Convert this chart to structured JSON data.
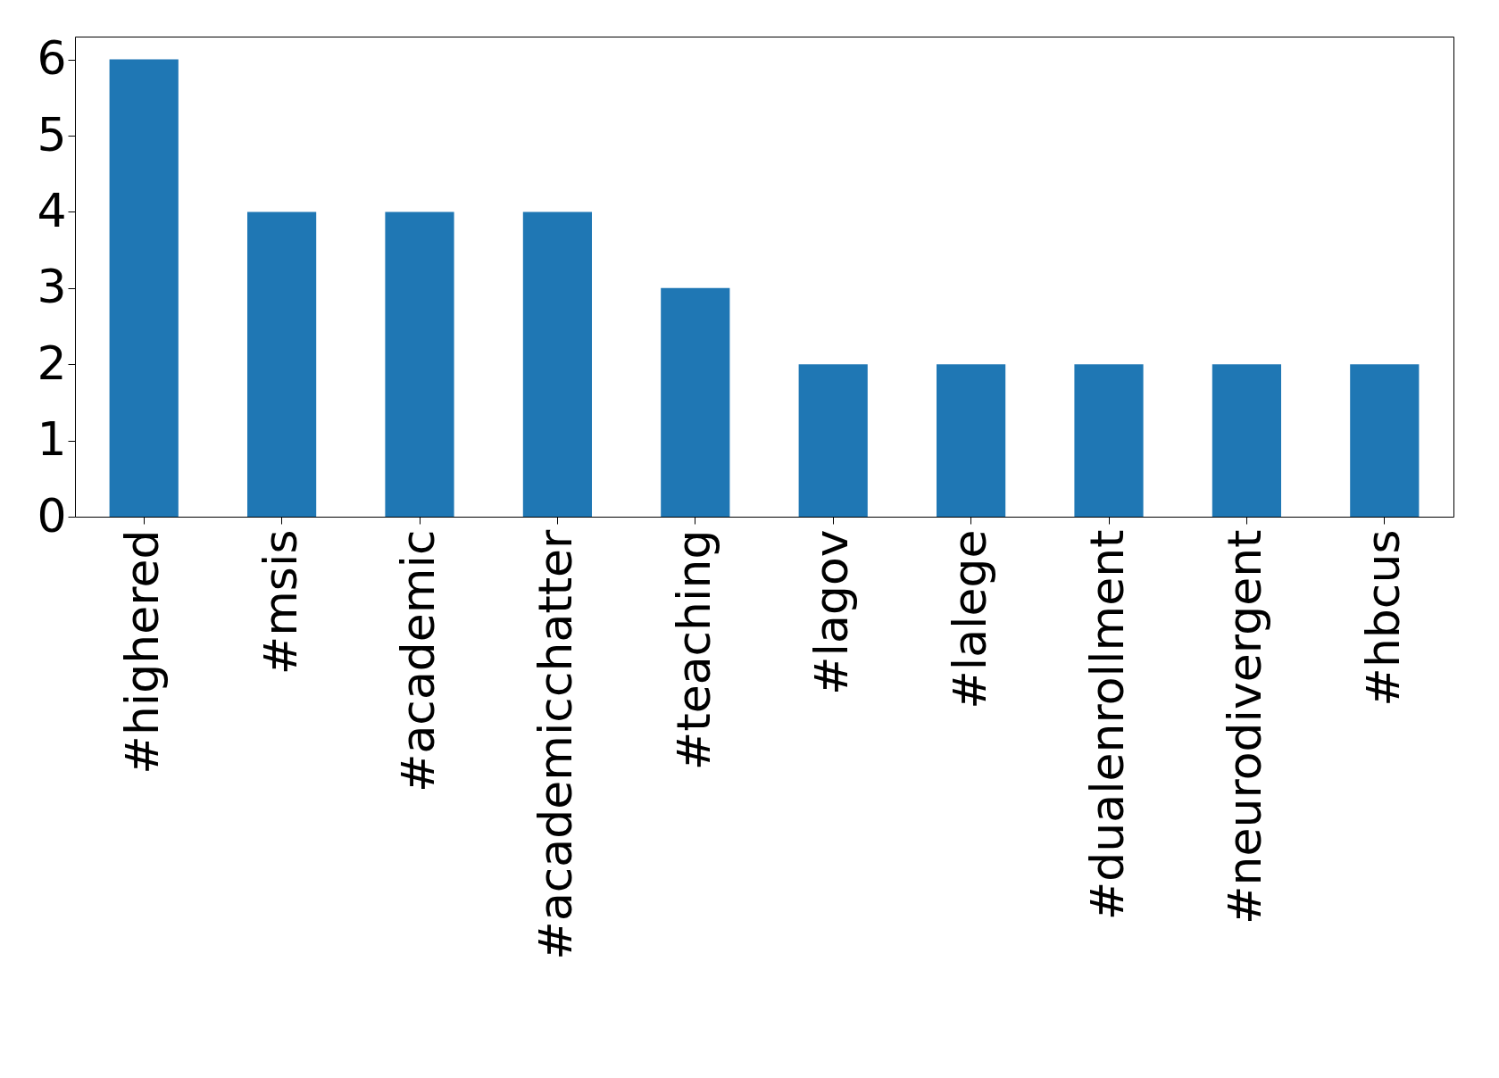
{
  "chart_data": {
    "type": "bar",
    "categories": [
      "#highered",
      "#msis",
      "#academic",
      "#academicchatter",
      "#teaching",
      "#lagov",
      "#lalege",
      "#dualenrollment",
      "#neurodivergent",
      "#hbcus"
    ],
    "values": [
      6,
      4,
      4,
      4,
      3,
      2,
      2,
      2,
      2,
      2
    ],
    "color": "#1f77b4",
    "ylim": [
      0,
      6.3
    ],
    "yticks": [
      0,
      1,
      2,
      3,
      4,
      5,
      6
    ],
    "grid": false
  }
}
